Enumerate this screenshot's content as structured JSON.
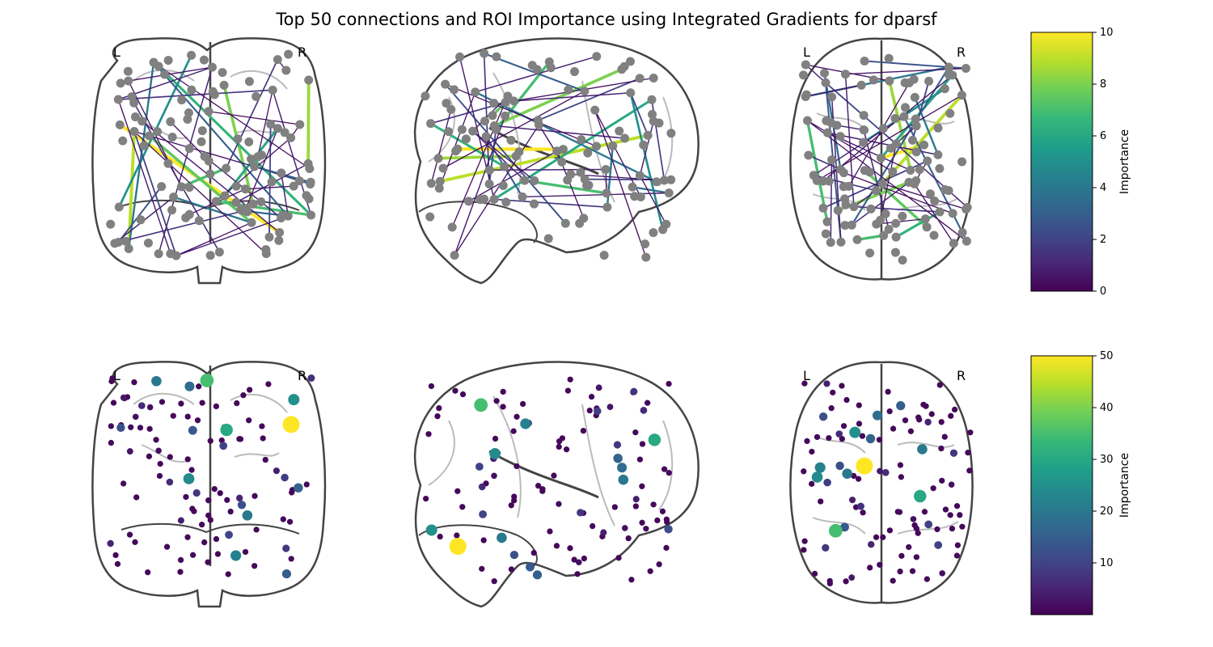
{
  "title": "Top 50 connections and ROI Importance using Integrated Gradients for dparsf",
  "view_labels": {
    "left": "L",
    "right": "R"
  },
  "colormap": {
    "name": "viridis",
    "stops": [
      "#440154",
      "#482878",
      "#3e4a89",
      "#31688e",
      "#26828e",
      "#1f9e89",
      "#35b779",
      "#6ece58",
      "#b5de2b",
      "#fde725"
    ]
  },
  "node_color": "#808080",
  "chart_data": [
    {
      "type": "connectome",
      "panel": "top 50 connections",
      "views": [
        "coronal",
        "sagittal",
        "axial"
      ],
      "colorbar": {
        "label": "Importance",
        "range": [
          0,
          10
        ],
        "ticks": [
          0,
          2,
          4,
          6,
          8,
          10
        ]
      },
      "edge_values": [
        10,
        9,
        8.5,
        8,
        7.5,
        7,
        7,
        6.5,
        6,
        5,
        4,
        4,
        3.5,
        3,
        3,
        2.5,
        2.5,
        2,
        2,
        2,
        1.5,
        1.5,
        1.5,
        1.5,
        1,
        1,
        1,
        1,
        1,
        1,
        1,
        0.8,
        0.8,
        0.8,
        0.8,
        0.6,
        0.6,
        0.6,
        0.6,
        0.5,
        0.5,
        0.5,
        0.5,
        0.4,
        0.4,
        0.4,
        0.3,
        0.3,
        0.3,
        0.3
      ]
    },
    {
      "type": "scatter",
      "panel": "ROI importance",
      "views": [
        "coronal",
        "sagittal",
        "axial"
      ],
      "colorbar": {
        "label": "Importance",
        "range": [
          0,
          50
        ],
        "ticks": [
          10,
          20,
          30,
          40,
          50
        ]
      },
      "roi_values": [
        50,
        35,
        30,
        25,
        24,
        22,
        20,
        20,
        18,
        16,
        15,
        14,
        12,
        12,
        10,
        10,
        9,
        8,
        8,
        7,
        6,
        6,
        5,
        5,
        4,
        4,
        3,
        3,
        2,
        2,
        2,
        1,
        1,
        1,
        1,
        1,
        1,
        1,
        1,
        1
      ]
    }
  ]
}
